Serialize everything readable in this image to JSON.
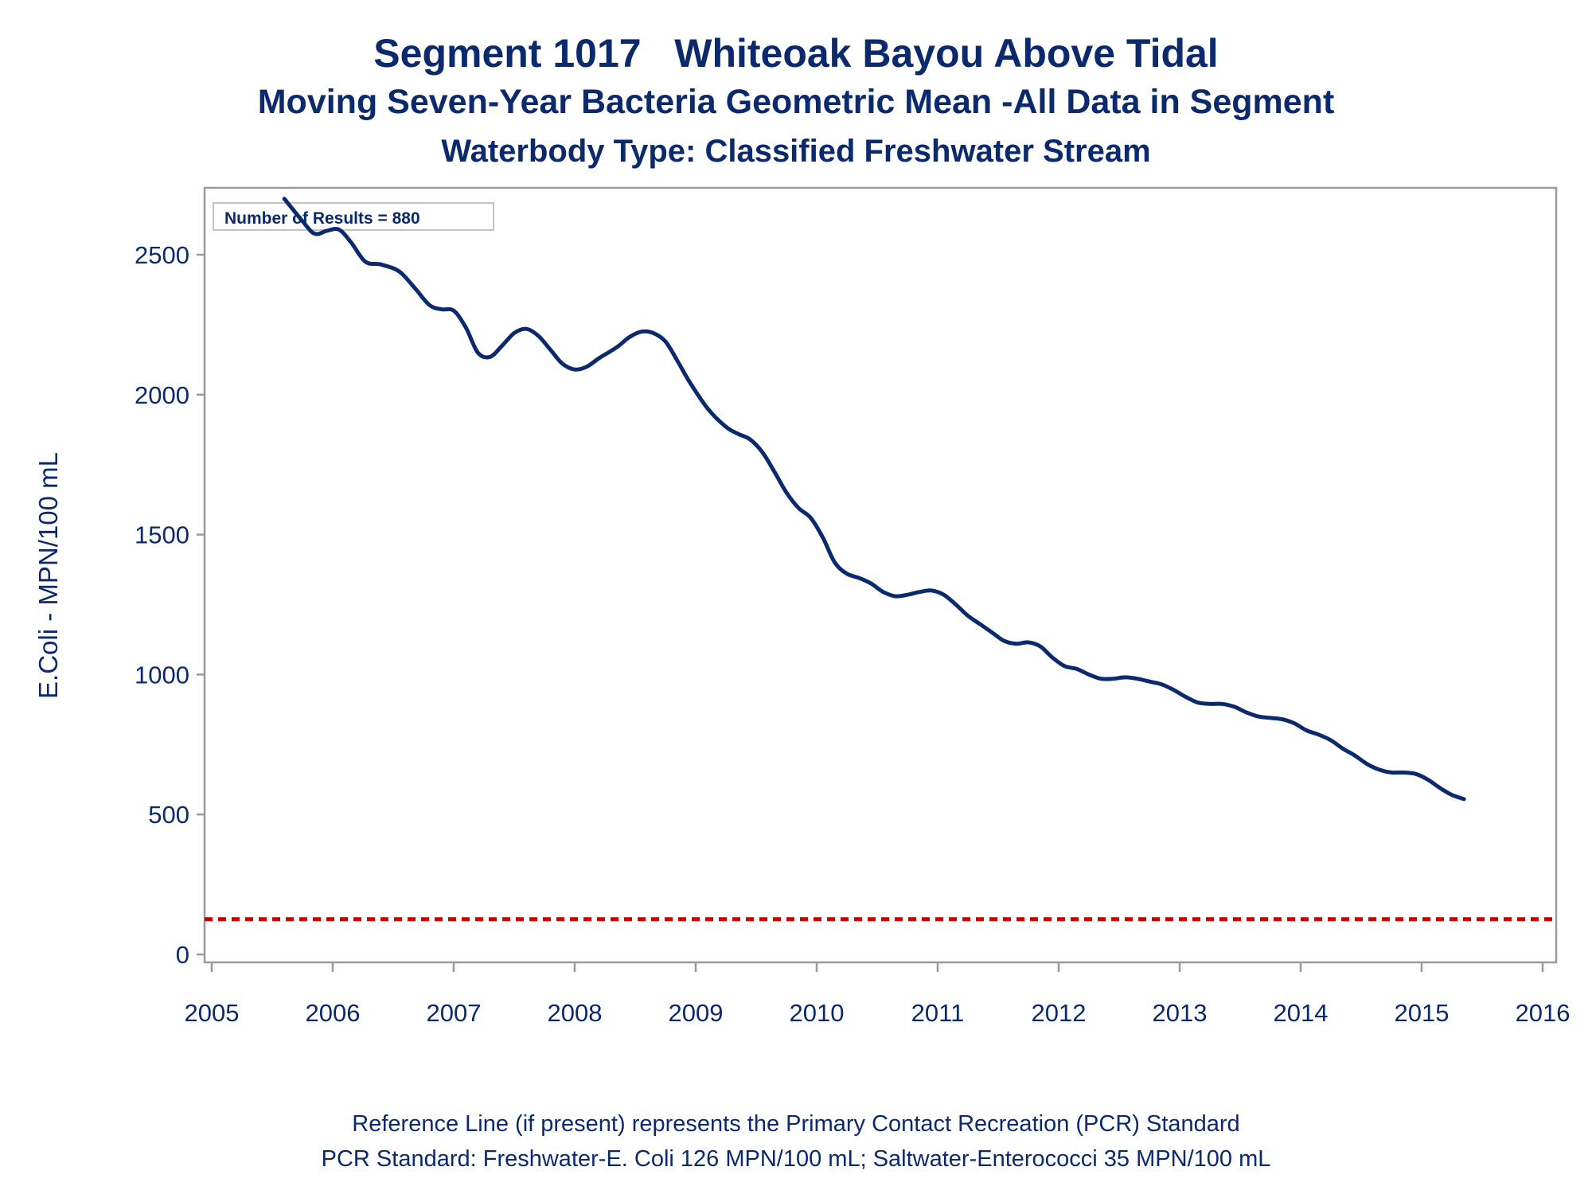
{
  "titles": {
    "line1": "Segment 1017   Whiteoak Bayou Above Tidal",
    "line2": "Moving Seven-Year Bacteria Geometric Mean -All Data in Segment",
    "line3": "Waterbody Type: Classified Freshwater Stream"
  },
  "footnotes": {
    "line1": "Reference Line (if present) represents the Primary Contact Recreation (PCR) Standard",
    "line2": "PCR Standard: Freshwater-E. Coli 126 MPN/100 mL; Saltwater-Enterococci 35 MPN/100 mL"
  },
  "colors": {
    "series": "#0b2a6e",
    "reference": "#cc0000",
    "frame": "#9a9a9a",
    "text": "#0b2a6e"
  },
  "chart_data": {
    "type": "line",
    "title": "Segment 1017   Whiteoak Bayou Above Tidal",
    "xlabel": "",
    "ylabel": "E.Coli - MPN/100 mL",
    "xlim": [
      2005,
      2016
    ],
    "ylim": [
      0,
      2750
    ],
    "x_ticks": [
      2005,
      2006,
      2007,
      2008,
      2009,
      2010,
      2011,
      2012,
      2013,
      2014,
      2015,
      2016
    ],
    "y_ticks": [
      0,
      500,
      1000,
      1500,
      2000,
      2500
    ],
    "grid": false,
    "annotation": "Number of Results = 880",
    "reference_line": {
      "y": 126,
      "style": "dashed",
      "color": "#cc0000"
    },
    "series": [
      {
        "x": [
          2005.6,
          2005.75,
          2005.85,
          2005.95,
          2006.05,
          2006.15,
          2006.27,
          2006.4,
          2006.55,
          2006.68,
          2006.8,
          2006.9,
          2007.0,
          2007.1,
          2007.2,
          2007.3,
          2007.4,
          2007.5,
          2007.6,
          2007.7,
          2007.8,
          2007.9,
          2008.0,
          2008.1,
          2008.2,
          2008.35,
          2008.45,
          2008.55,
          2008.65,
          2008.75,
          2008.85,
          2008.95,
          2009.1,
          2009.25,
          2009.35,
          2009.45,
          2009.55,
          2009.65,
          2009.75,
          2009.85,
          2009.95,
          2010.05,
          2010.15,
          2010.25,
          2010.35,
          2010.45,
          2010.55,
          2010.65,
          2010.75,
          2010.85,
          2010.95,
          2011.05,
          2011.15,
          2011.25,
          2011.35,
          2011.45,
          2011.55,
          2011.65,
          2011.75,
          2011.85,
          2011.95,
          2012.05,
          2012.15,
          2012.25,
          2012.35,
          2012.45,
          2012.55,
          2012.65,
          2012.75,
          2012.85,
          2012.95,
          2013.05,
          2013.15,
          2013.25,
          2013.35,
          2013.45,
          2013.55,
          2013.65,
          2013.75,
          2013.85,
          2013.95,
          2014.05,
          2014.15,
          2014.25,
          2014.35,
          2014.45,
          2014.55,
          2014.65,
          2014.75,
          2014.85,
          2014.95,
          2015.05,
          2015.15,
          2015.25,
          2015.35
        ],
        "y": [
          2700,
          2620,
          2575,
          2585,
          2590,
          2545,
          2475,
          2465,
          2440,
          2380,
          2320,
          2305,
          2300,
          2240,
          2150,
          2135,
          2175,
          2220,
          2235,
          2210,
          2160,
          2110,
          2090,
          2100,
          2130,
          2170,
          2205,
          2225,
          2220,
          2190,
          2120,
          2045,
          1950,
          1885,
          1860,
          1840,
          1795,
          1725,
          1650,
          1595,
          1560,
          1490,
          1400,
          1360,
          1345,
          1325,
          1295,
          1280,
          1285,
          1295,
          1300,
          1285,
          1250,
          1210,
          1180,
          1150,
          1120,
          1110,
          1115,
          1100,
          1060,
          1030,
          1020,
          1000,
          985,
          985,
          990,
          985,
          975,
          965,
          945,
          920,
          900,
          895,
          895,
          885,
          865,
          850,
          845,
          840,
          825,
          800,
          785,
          765,
          735,
          710,
          680,
          660,
          650,
          650,
          645,
          625,
          595,
          570,
          555
        ]
      }
    ]
  }
}
